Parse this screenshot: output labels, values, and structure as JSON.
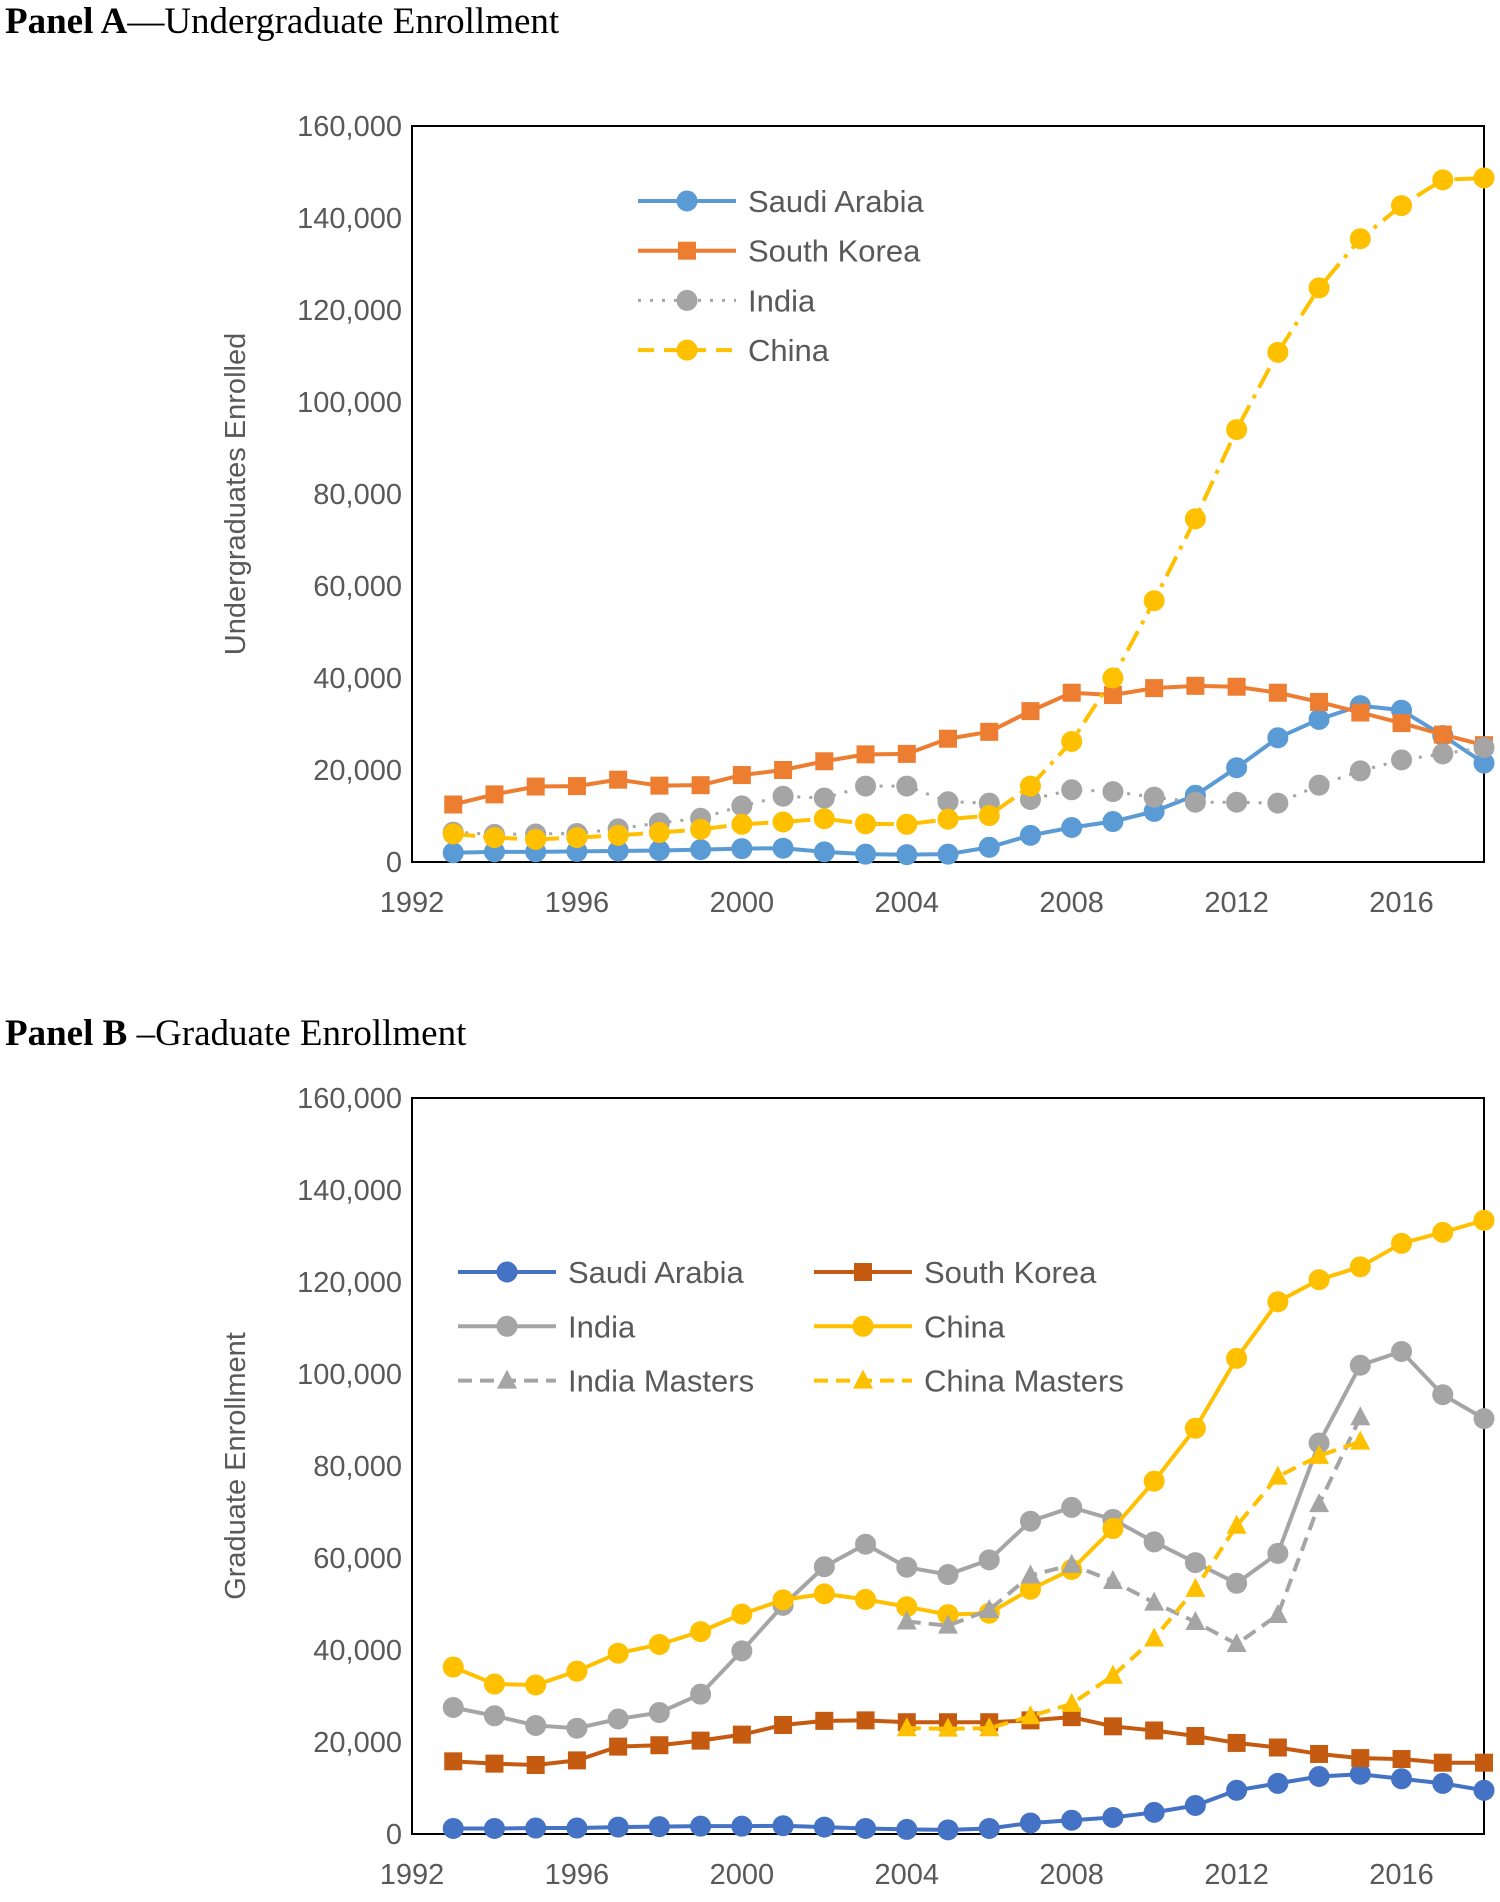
{
  "panels": [
    {
      "id": "a",
      "title_bold": "Panel A",
      "title_rest": "—Undergraduate Enrollment"
    },
    {
      "id": "b",
      "title_bold": "Panel B",
      "title_rest": " –Graduate Enrollment"
    }
  ],
  "chart_data": [
    {
      "type": "line",
      "title": "Panel A—Undergraduate Enrollment",
      "xlabel": "",
      "ylabel": "Undergraduates Enrolled",
      "xlim": [
        1992,
        2018
      ],
      "ylim": [
        0,
        160000
      ],
      "x_ticks": [
        "1992",
        "1996",
        "2000",
        "2004",
        "2008",
        "2012",
        "2016"
      ],
      "y_ticks": [
        "0",
        "20,000",
        "40,000",
        "60,000",
        "80,000",
        "100,000",
        "120,000",
        "140,000",
        "160,000"
      ],
      "legend_position": "top-left-inside",
      "x": [
        1993,
        1994,
        1995,
        1996,
        1997,
        1998,
        1999,
        2000,
        2001,
        2002,
        2003,
        2004,
        2005,
        2006,
        2007,
        2008,
        2009,
        2010,
        2011,
        2012,
        2013,
        2014,
        2015,
        2016,
        2017,
        2018
      ],
      "series": [
        {
          "name": "Saudi Arabia",
          "color": "#5B9BD5",
          "dash": "solid",
          "marker": "circle",
          "values": [
            2000,
            2200,
            2200,
            2300,
            2400,
            2500,
            2700,
            2900,
            3000,
            2200,
            1700,
            1600,
            1700,
            3200,
            5800,
            7500,
            8800,
            11000,
            14500,
            20500,
            27000,
            31000,
            34000,
            33000,
            27500,
            21500
          ]
        },
        {
          "name": "South Korea",
          "color": "#ED7D31",
          "dash": "solid",
          "marker": "square",
          "values": [
            12500,
            14700,
            16400,
            16500,
            17900,
            16600,
            16700,
            18900,
            20000,
            21900,
            23400,
            23500,
            26800,
            28300,
            32800,
            36800,
            36300,
            37800,
            38300,
            38100,
            36800,
            34800,
            32500,
            30200,
            27700,
            25400
          ]
        },
        {
          "name": "India",
          "color": "#A5A5A5",
          "dash": "dotted",
          "marker": "circle",
          "values": [
            6500,
            6000,
            6100,
            6200,
            7200,
            8500,
            9500,
            12200,
            14300,
            13900,
            16500,
            16500,
            13100,
            12800,
            13600,
            15700,
            15300,
            14100,
            13000,
            13000,
            12800,
            16700,
            19800,
            22200,
            23500,
            24900
          ]
        },
        {
          "name": "China",
          "color": "#FFC000",
          "dash": "dashdot",
          "marker": "circle",
          "values": [
            6100,
            5300,
            4900,
            5300,
            5800,
            6400,
            7100,
            8200,
            8700,
            9400,
            8300,
            8200,
            9300,
            10100,
            16500,
            26200,
            40000,
            56800,
            74600,
            94000,
            110800,
            124800,
            135500,
            142700,
            148300,
            148700
          ]
        }
      ]
    },
    {
      "type": "line",
      "title": "Panel B –Graduate Enrollment",
      "xlabel": "",
      "ylabel": "Graduate Enrollment",
      "xlim": [
        1992,
        2018
      ],
      "ylim": [
        0,
        160000
      ],
      "x_ticks": [
        "1992",
        "1996",
        "2000",
        "2004",
        "2008",
        "2012",
        "2016"
      ],
      "y_ticks": [
        "0",
        "20,000",
        "40,000",
        "60,000",
        "80,000",
        "100,000",
        "120,000",
        "140,000",
        "160,000"
      ],
      "legend_position": "upper-middle-inside",
      "x": [
        1993,
        1994,
        1995,
        1996,
        1997,
        1998,
        1999,
        2000,
        2001,
        2002,
        2003,
        2004,
        2005,
        2006,
        2007,
        2008,
        2009,
        2010,
        2011,
        2012,
        2013,
        2014,
        2015,
        2016,
        2017,
        2018
      ],
      "series": [
        {
          "name": "Saudi Arabia",
          "color": "#4472C4",
          "dash": "solid",
          "marker": "circle",
          "values": [
            1200,
            1200,
            1300,
            1300,
            1500,
            1600,
            1700,
            1700,
            1800,
            1500,
            1200,
            1000,
            900,
            1200,
            2400,
            3000,
            3600,
            4700,
            6200,
            9500,
            11000,
            12500,
            13000,
            12000,
            11000,
            9500
          ]
        },
        {
          "name": "South Korea",
          "color": "#C55A11",
          "dash": "solid",
          "marker": "square",
          "values": [
            15800,
            15300,
            15000,
            16000,
            19000,
            19300,
            20300,
            21600,
            23700,
            24600,
            24700,
            24300,
            24300,
            24300,
            24700,
            25400,
            23400,
            22500,
            21300,
            19800,
            18800,
            17400,
            16500,
            16300,
            15500,
            15500
          ]
        },
        {
          "name": "India",
          "color": "#A5A5A5",
          "dash": "solid",
          "marker": "circle",
          "values": [
            27500,
            25700,
            23600,
            23000,
            25000,
            26400,
            30400,
            39800,
            49700,
            58100,
            63000,
            58000,
            56400,
            59600,
            68000,
            71000,
            68400,
            63500,
            59000,
            54500,
            61000,
            85000,
            101900,
            104900,
            95500,
            90300
          ]
        },
        {
          "name": "China",
          "color": "#FFC000",
          "dash": "solid",
          "marker": "circle",
          "values": [
            36300,
            32600,
            32400,
            35400,
            39300,
            41200,
            44000,
            47800,
            50900,
            52200,
            51000,
            49400,
            47700,
            48000,
            53200,
            57500,
            66400,
            76700,
            88200,
            103400,
            115700,
            120500,
            123300,
            128400,
            130800,
            133400
          ]
        },
        {
          "name": "India Masters",
          "color": "#A5A5A5",
          "dash": "dashed",
          "marker": "triangle",
          "x": [
            2004,
            2005,
            2006,
            2007,
            2008,
            2009,
            2010,
            2011,
            2012,
            2013,
            2014,
            2015
          ],
          "values": [
            46200,
            45300,
            48700,
            56200,
            58500,
            55000,
            50300,
            46100,
            41300,
            47600,
            71700,
            90600
          ]
        },
        {
          "name": "China Masters",
          "color": "#FFC000",
          "dash": "dashed",
          "marker": "triangle",
          "x": [
            2004,
            2005,
            2006,
            2007,
            2008,
            2009,
            2010,
            2011,
            2012,
            2013,
            2014,
            2015
          ],
          "values": [
            23000,
            22900,
            23000,
            25600,
            28300,
            34400,
            42500,
            53300,
            67000,
            77700,
            82200,
            85300
          ]
        }
      ]
    }
  ]
}
